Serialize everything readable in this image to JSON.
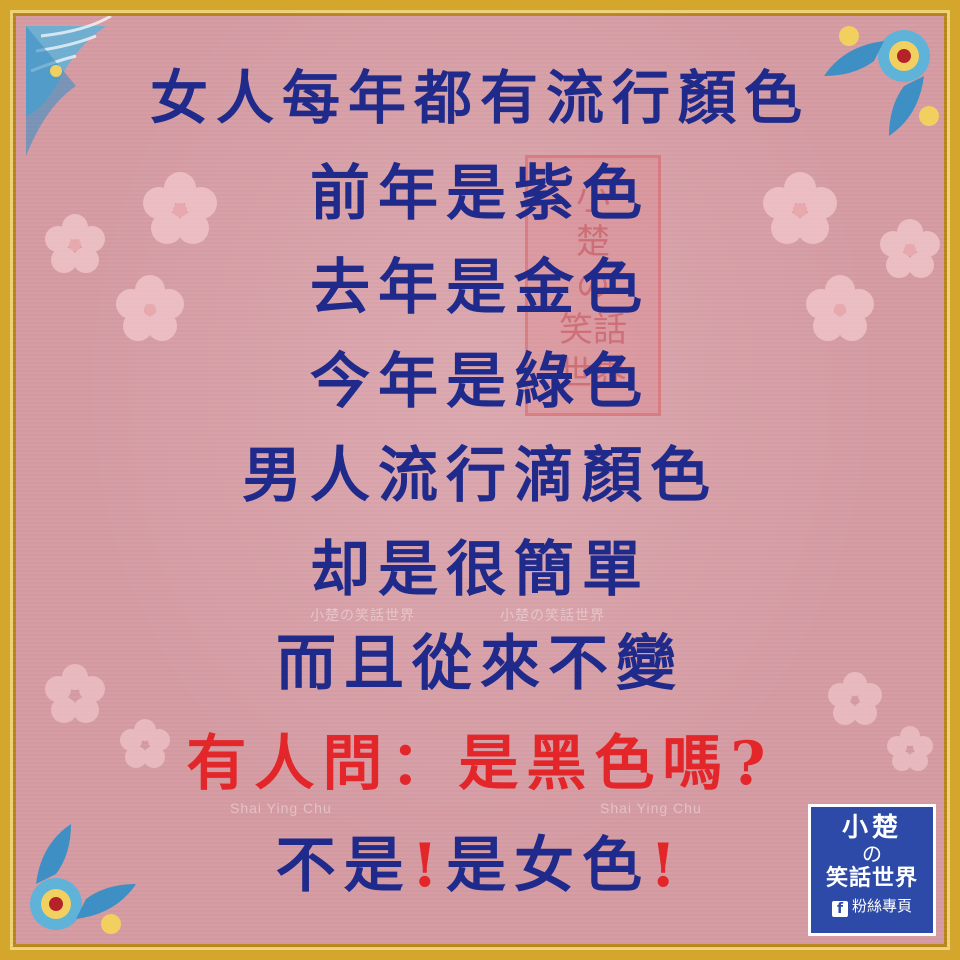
{
  "poem": {
    "line1": "女人每年都有流行顏色",
    "line2": "前年是紫色",
    "line3": "去年是金色",
    "line4": "今年是綠色",
    "line5": "男人流行滴顏色",
    "line6": "却是很簡單",
    "line7": "而且從來不變",
    "line8": "有人問：是黑色嗎",
    "line8_mark": "?",
    "line9_a": "不是",
    "line9_mark1": "!",
    "line9_b": "是女色",
    "line9_mark2": "!"
  },
  "seal": {
    "text_1": "小",
    "text_2": "楚",
    "text_3": "の",
    "text_4": "笑話",
    "text_5": "世界"
  },
  "watermarks": {
    "mid_left": "小楚の笑話世界",
    "mid_right": "小楚の笑話世界",
    "low_left": "Shai Ying Chu",
    "low_right": "Shai Ying Chu"
  },
  "badge": {
    "title": "小楚",
    "middle": "の",
    "name": "笑話世界",
    "fb_icon": "facebook-icon",
    "page": "粉絲專頁"
  },
  "colors": {
    "text_blue": "#1f2a8a",
    "text_red": "#e3262a",
    "background_pink": "#d59ba3",
    "frame_gold": "#d4a72c",
    "badge_blue": "#2d4aa9"
  }
}
